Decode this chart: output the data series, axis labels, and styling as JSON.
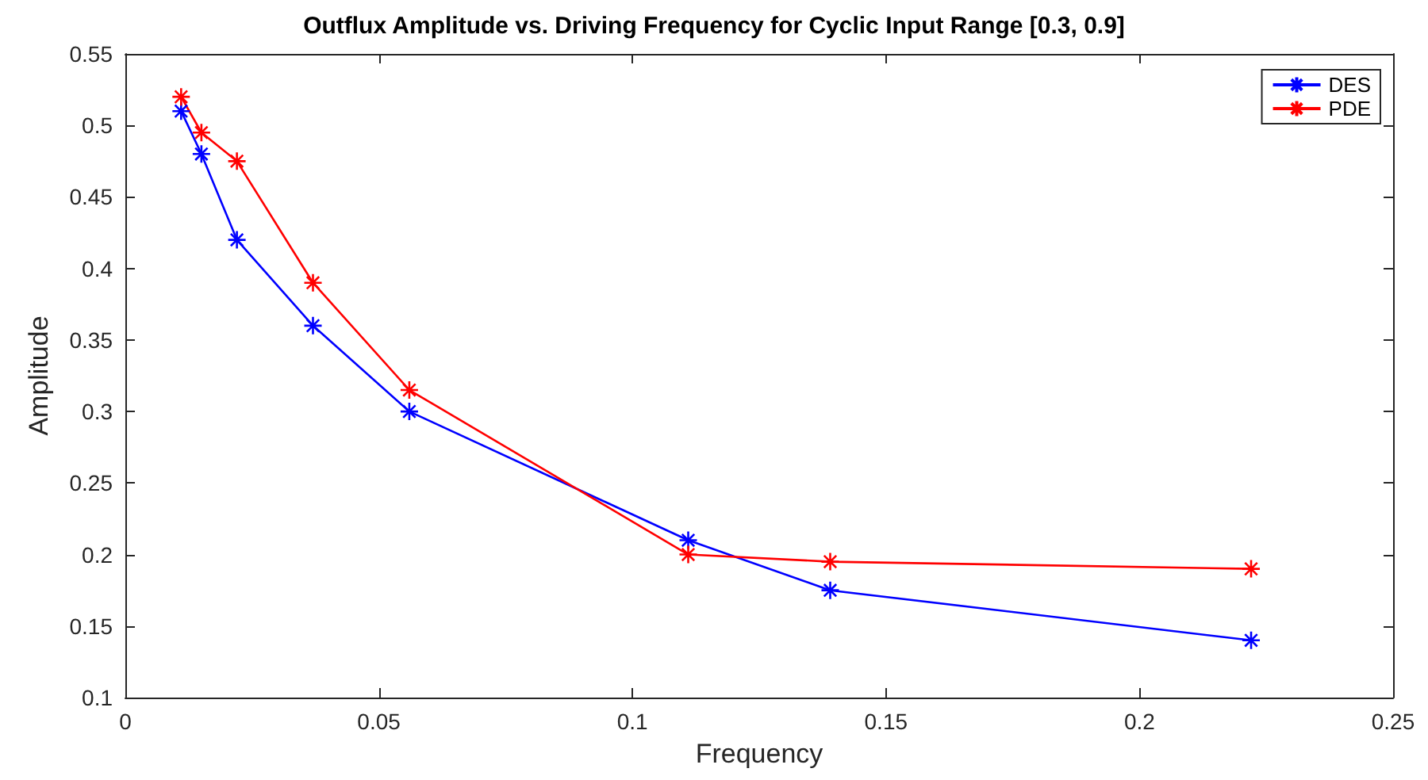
{
  "chart_data": {
    "type": "line",
    "title": "Outflux Amplitude vs. Driving Frequency for Cyclic Input Range [0.3, 0.9]",
    "xlabel": "Frequency",
    "ylabel": "Amplitude",
    "x": [
      0.011,
      0.015,
      0.022,
      0.037,
      0.056,
      0.111,
      0.139,
      0.222
    ],
    "series": [
      {
        "name": "DES",
        "color": "#0000ff",
        "values": [
          0.51,
          0.48,
          0.42,
          0.36,
          0.3,
          0.21,
          0.175,
          0.14
        ]
      },
      {
        "name": "PDE",
        "color": "#ff0000",
        "values": [
          0.52,
          0.495,
          0.475,
          0.39,
          0.315,
          0.2,
          0.195,
          0.19
        ]
      }
    ],
    "xlim": [
      0,
      0.25
    ],
    "xticks": [
      0,
      0.05,
      0.1,
      0.15,
      0.2,
      0.25
    ],
    "ylim": [
      0.1,
      0.55
    ],
    "yticks": [
      0.1,
      0.15,
      0.2,
      0.25,
      0.3,
      0.35,
      0.4,
      0.45,
      0.5,
      0.55
    ],
    "grid": false,
    "legend": "top right",
    "marker": "cross",
    "line_style": "solid"
  }
}
